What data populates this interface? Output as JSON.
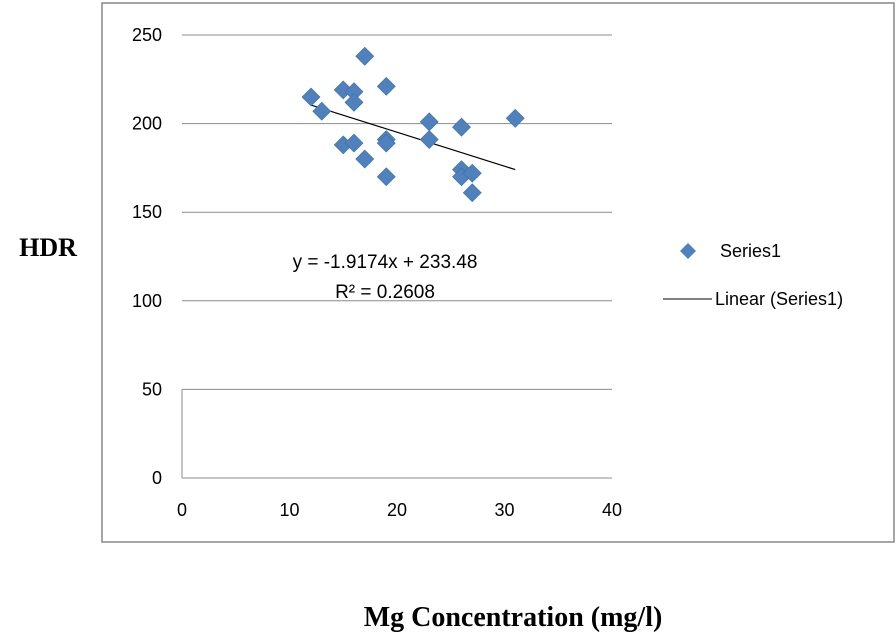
{
  "chart_data": {
    "type": "scatter",
    "title": "",
    "xlabel": "Mg Concentration (mg/l)",
    "ylabel": "HDR",
    "xlim": [
      0,
      40
    ],
    "ylim": [
      0,
      250
    ],
    "x_ticks": [
      "0",
      "10",
      "20",
      "30",
      "40"
    ],
    "y_ticks": [
      "0",
      "50",
      "100",
      "150",
      "200",
      "250"
    ],
    "grid": "horizontal",
    "legend_position": "right",
    "series": [
      {
        "name": "Series1",
        "color": "#4F81BD",
        "marker": "diamond",
        "points": [
          {
            "x": 12,
            "y": 215
          },
          {
            "x": 13,
            "y": 207
          },
          {
            "x": 15,
            "y": 219
          },
          {
            "x": 15,
            "y": 188
          },
          {
            "x": 16,
            "y": 218
          },
          {
            "x": 16,
            "y": 212
          },
          {
            "x": 16,
            "y": 189
          },
          {
            "x": 17,
            "y": 238
          },
          {
            "x": 17,
            "y": 180
          },
          {
            "x": 19,
            "y": 221
          },
          {
            "x": 19,
            "y": 191
          },
          {
            "x": 19,
            "y": 189
          },
          {
            "x": 19,
            "y": 170
          },
          {
            "x": 23,
            "y": 201
          },
          {
            "x": 23,
            "y": 191
          },
          {
            "x": 26,
            "y": 198
          },
          {
            "x": 26,
            "y": 174
          },
          {
            "x": 26,
            "y": 170
          },
          {
            "x": 27,
            "y": 172
          },
          {
            "x": 27,
            "y": 161
          },
          {
            "x": 31,
            "y": 203
          }
        ]
      }
    ],
    "trendline": {
      "name": "Linear (Series1)",
      "type": "linear",
      "slope": -1.9174,
      "intercept": 233.48,
      "x_range": [
        12,
        31
      ],
      "equation": "y = -1.9174x + 233.48",
      "r_squared": "R² = 0.2608",
      "color": "#000000"
    }
  }
}
